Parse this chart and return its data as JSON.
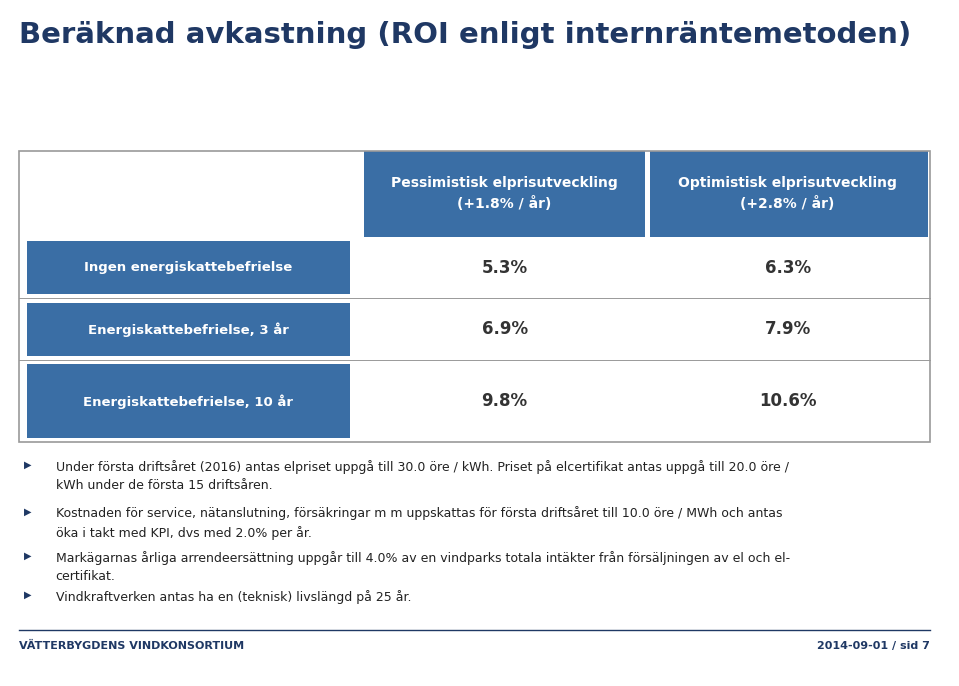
{
  "title": "Beräknad avkastning (ROI enligt internräntemetoden)",
  "title_color": "#1F3864",
  "title_fontsize": 21,
  "header_col1": "Pessimistisk elprisutveckling\n(+1.8% / år)",
  "header_col2": "Optimistisk elprisutveckling\n(+2.8% / år)",
  "header_bg_color": "#3A6EA5",
  "header_text_color": "#FFFFFF",
  "row_labels": [
    "Ingen energiskattebefrielse",
    "Energiskattebefrielse, 3 år",
    "Energiskattebefrielse, 10 år"
  ],
  "row_label_bg_color": "#3A6EA5",
  "row_label_text_color": "#FFFFFF",
  "col1_values": [
    "5.3%",
    "6.9%",
    "9.8%"
  ],
  "col2_values": [
    "6.3%",
    "7.9%",
    "10.6%"
  ],
  "value_color": "#333333",
  "bullet_color": "#1F3864",
  "bullet_points": [
    "Under första driftsåret (2016) antas elpriset uppgå till 30.0 öre / kWh. Priset på elcertifikat antas uppgå till 20.0 öre /\nkWh under de första 15 driftsåren.",
    "Kostnaden för service, nätanslutning, försäkringar m m uppskattas för första driftsåret till 10.0 öre / MWh och antas\nöka i takt med KPI, dvs med 2.0% per år.",
    "Markägarnas årliga arrendeersättning uppgår till 4.0% av en vindparks totala intäkter från försäljningen av el och el-\ncertifikat.",
    "Vindkraftverken antas ha en (teknisk) livslängd på 25 år."
  ],
  "footer_left": "VÄTTERBYGDENS VINDKONSORTIUM",
  "footer_right": "2014-09-01 / sid 7",
  "footer_color": "#1F3864",
  "table_border_color": "#999999",
  "background_color": "#FFFFFF",
  "page_bg_color": "#E8E8E8"
}
